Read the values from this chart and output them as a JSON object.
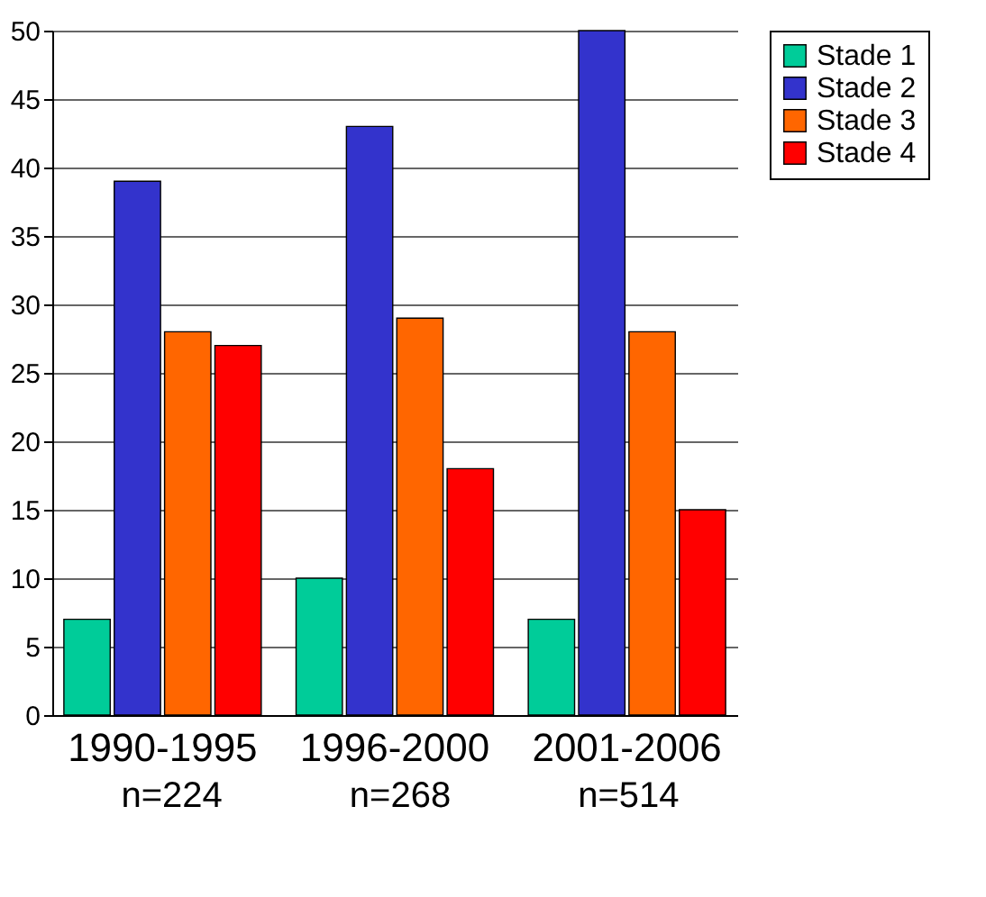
{
  "chart_data": {
    "type": "bar",
    "categories": [
      "1990-1995",
      "1996-2000",
      "2001-2006"
    ],
    "series": [
      {
        "name": "Stade 1",
        "color": "#00cc99",
        "values": [
          7,
          10,
          7
        ]
      },
      {
        "name": "Stade 2",
        "color": "#3333cc",
        "values": [
          39,
          43,
          50
        ]
      },
      {
        "name": "Stade 3",
        "color": "#ff6600",
        "values": [
          28,
          29,
          28
        ]
      },
      {
        "name": "Stade 4",
        "color": "#ff0000",
        "values": [
          27,
          18,
          15
        ]
      }
    ],
    "ylim": [
      0,
      50
    ],
    "yticks": [
      0,
      5,
      10,
      15,
      20,
      25,
      30,
      35,
      40,
      45,
      50
    ],
    "grid": "y",
    "legend": "top right",
    "annotations": [
      "n=224",
      "n=268",
      "n=514"
    ]
  }
}
